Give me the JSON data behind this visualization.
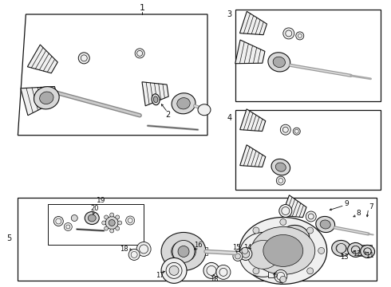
{
  "bg_color": "#ffffff",
  "fig_width": 4.9,
  "fig_height": 3.6,
  "dpi": 100,
  "lc": "#111111",
  "lc_light": "#666666",
  "fill_light": "#f0f0f0",
  "fill_mid": "#d8d8d8",
  "fill_dark": "#aaaaaa",
  "font_size": 6.5
}
